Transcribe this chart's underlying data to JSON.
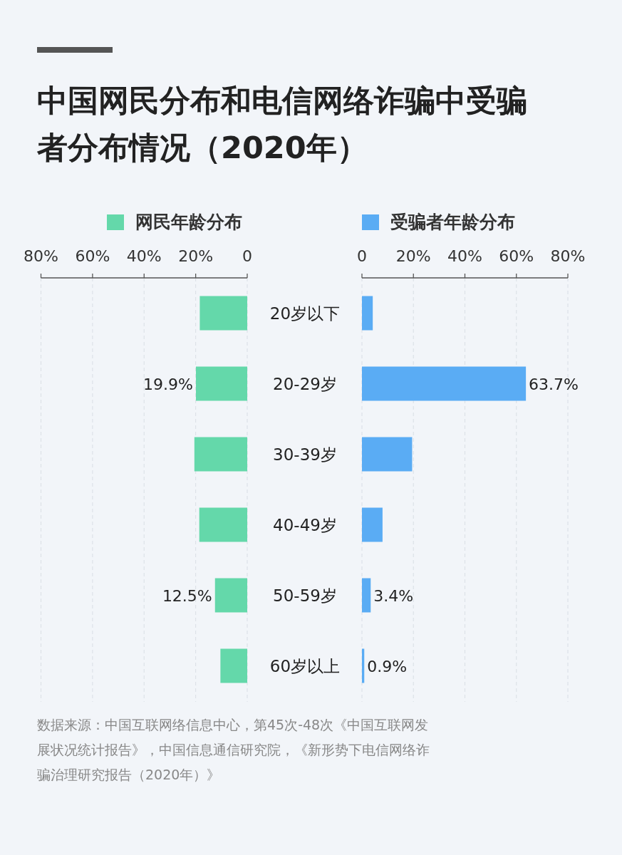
{
  "chart_data": [
    {
      "type": "bar",
      "orientation": "horizontal",
      "title": "中国网民分布和电信网络诈骗中受骗者分布情况（2020年）",
      "categories": [
        "20岁以下",
        "20-29岁",
        "30-39岁",
        "40-49岁",
        "50-59岁",
        "60岁以上"
      ],
      "series": [
        {
          "name": "网民年龄分布",
          "color": "#64d8aa",
          "values": [
            18.4,
            19.9,
            20.5,
            18.6,
            12.5,
            10.4
          ],
          "value_labels": [
            null,
            "19.9%",
            null,
            null,
            "12.5%",
            null
          ]
        }
      ],
      "xlim": [
        80,
        0
      ],
      "xticks": [
        {
          "value": 80,
          "label": "80%"
        },
        {
          "value": 60,
          "label": "60%"
        },
        {
          "value": 40,
          "label": "40%"
        },
        {
          "value": 20,
          "label": "20%"
        },
        0
      ],
      "grid": "x",
      "legend": "top",
      "annotations": [
        "数据来源：中国互联网络信息中心，第45次-48次《中国互联网发展状况统计报告》，中国信息通信研究院，《新形势下电信网络诈骗治理研究报告（2020年）》"
      ]
    },
    {
      "type": "bar",
      "orientation": "horizontal",
      "series": [
        {
          "name": "受骗者年龄分布",
          "color": "#5aacf4",
          "values": [
            4.2,
            63.7,
            19.5,
            8.0,
            3.4,
            0.9
          ],
          "value_labels": [
            null,
            "63.7%",
            null,
            null,
            "3.4%",
            "0.9%"
          ]
        }
      ],
      "xlim": [
        0,
        80
      ],
      "xticks": [
        0,
        {
          "value": 20,
          "label": "20%"
        },
        {
          "value": 40,
          "label": "40%"
        },
        {
          "value": 60,
          "label": "60%"
        },
        {
          "value": 80,
          "label": "80%"
        }
      ],
      "grid": "x",
      "legend": "top",
      "tick_labels": "x"
    }
  ]
}
